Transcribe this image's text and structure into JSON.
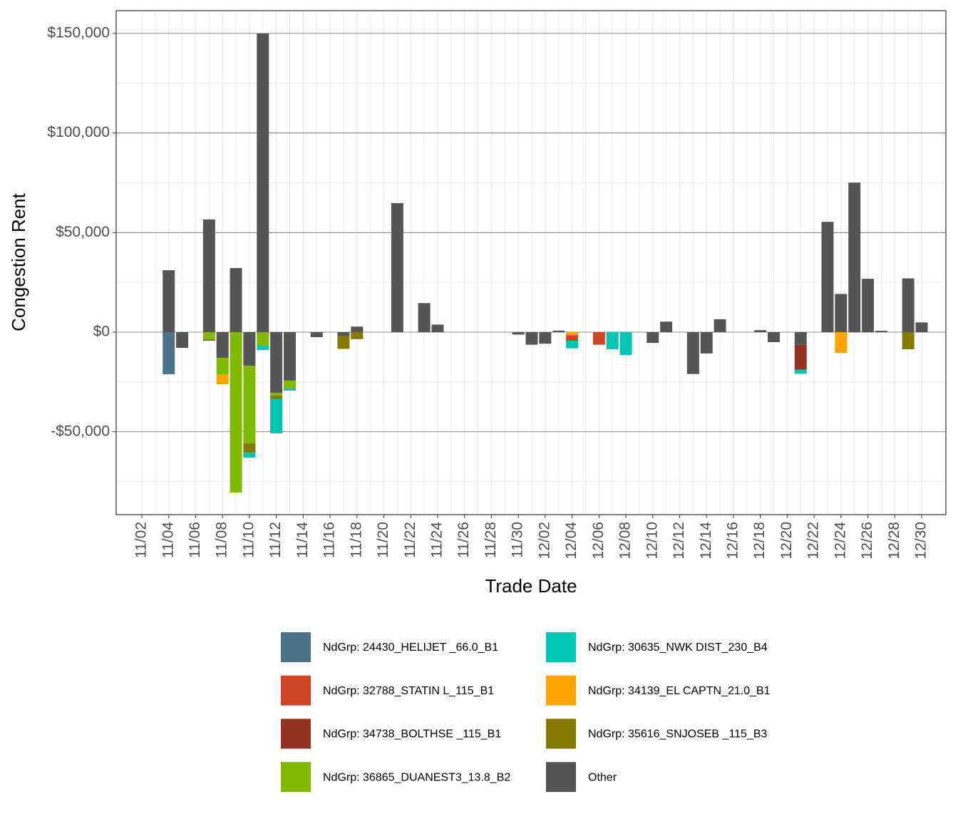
{
  "chart_data": {
    "type": "bar",
    "stacked": true,
    "x_label": "Trade Date",
    "y_label": "Congestion Rent",
    "categories": [
      "11/02",
      null,
      "11/04",
      null,
      "11/06",
      null,
      "11/08",
      null,
      "11/10",
      null,
      "11/12",
      null,
      "11/14",
      null,
      "11/16",
      null,
      "11/18",
      null,
      "11/20",
      null,
      "11/22",
      null,
      "11/24",
      null,
      "11/26",
      null,
      "11/28",
      null,
      "11/30",
      null,
      "12/02",
      null,
      "12/04",
      null,
      "12/06",
      null,
      "12/08",
      null,
      "12/10",
      null,
      "12/12",
      null,
      "12/14",
      null,
      "12/16",
      null,
      "12/18",
      null,
      "12/20",
      null,
      "12/22",
      null,
      "12/24",
      null,
      "12/26",
      null,
      "12/28",
      null,
      "12/30"
    ],
    "ylim": [
      -91600,
      161400
    ],
    "yticks": [
      {
        "value": -50000,
        "label": "-$50,000"
      },
      {
        "value": 0,
        "label": "$0"
      },
      {
        "value": 50000,
        "label": "$50,000"
      },
      {
        "value": 100000,
        "label": "$100,000"
      },
      {
        "value": 150000,
        "label": "$150,000"
      }
    ],
    "grid": true,
    "series": [
      {
        "name": "NdGrp: 24430_HELIJET _66.0_B1",
        "color": "#4e7389",
        "values": [
          0,
          0,
          -21100,
          0,
          0,
          0,
          0,
          0,
          0,
          0,
          0,
          0,
          0,
          0,
          0,
          0,
          0,
          0,
          0,
          0,
          0,
          0,
          0,
          0,
          0,
          0,
          0,
          0,
          0,
          0,
          0,
          0,
          0,
          0,
          0,
          0,
          0,
          0,
          0,
          0,
          0,
          0,
          0,
          0,
          0,
          0,
          0,
          0,
          0,
          0,
          0,
          0,
          0,
          0,
          0,
          0,
          0,
          0,
          0
        ]
      },
      {
        "name": "NdGrp: 32788_STATIN L_115_B1",
        "color": "#d04524",
        "values": [
          0,
          0,
          0,
          0,
          0,
          0,
          0,
          0,
          0,
          0,
          0,
          0,
          0,
          0,
          0,
          0,
          0,
          0,
          0,
          0,
          0,
          0,
          0,
          0,
          0,
          0,
          0,
          0,
          0,
          0,
          0,
          0,
          -2800,
          0,
          -6300,
          0,
          0,
          0,
          0,
          0,
          0,
          0,
          0,
          0,
          0,
          0,
          0,
          0,
          0,
          0,
          0,
          0,
          0,
          0,
          0,
          0,
          0,
          0,
          0
        ]
      },
      {
        "name": "NdGrp: 34738_BOLTHSE _115_B1",
        "color": "#933423",
        "values": [
          0,
          0,
          0,
          0,
          0,
          0,
          0,
          0,
          0,
          0,
          0,
          0,
          0,
          0,
          0,
          0,
          0,
          0,
          0,
          0,
          0,
          0,
          0,
          0,
          0,
          0,
          0,
          0,
          0,
          0,
          0,
          0,
          0,
          0,
          0,
          0,
          0,
          0,
          0,
          0,
          0,
          0,
          0,
          0,
          0,
          0,
          0,
          0,
          0,
          -12500,
          0,
          0,
          0,
          0,
          0,
          0,
          0,
          0,
          0
        ]
      },
      {
        "name": "NdGrp: 36865_DUANEST3_13.8_B2",
        "color": "#80ba00",
        "values": [
          0,
          0,
          0,
          0,
          0,
          -3500,
          -8200,
          -80500,
          -39000,
          -6800,
          -1400,
          -3900,
          0,
          0,
          0,
          0,
          0,
          0,
          0,
          0,
          0,
          0,
          0,
          0,
          0,
          0,
          0,
          0,
          0,
          0,
          0,
          0,
          0,
          0,
          0,
          0,
          0,
          0,
          0,
          0,
          0,
          0,
          0,
          0,
          0,
          0,
          0,
          0,
          0,
          0,
          0,
          0,
          0,
          0,
          0,
          0,
          0,
          0,
          0
        ]
      },
      {
        "name": "NdGrp: 30635_NWK DIST_230_B4",
        "color": "#00c5b1",
        "values": [
          0,
          0,
          0,
          0,
          0,
          0,
          0,
          0,
          -2500,
          -2100,
          -17200,
          -1100,
          0,
          0,
          0,
          0,
          0,
          0,
          0,
          0,
          0,
          0,
          0,
          0,
          0,
          0,
          0,
          0,
          0,
          0,
          0,
          0,
          -3800,
          0,
          0,
          -8600,
          -11500,
          0,
          0,
          0,
          0,
          0,
          0,
          0,
          0,
          0,
          0,
          0,
          0,
          -2100,
          0,
          0,
          0,
          0,
          0,
          0,
          0,
          0,
          0
        ]
      },
      {
        "name": "NdGrp: 34139_EL CAPTN_21.0_B1",
        "color": "#ffa300",
        "values": [
          0,
          0,
          0,
          0,
          0,
          0,
          -5000,
          0,
          0,
          0,
          0,
          0,
          0,
          0,
          0,
          0,
          0,
          0,
          0,
          0,
          0,
          0,
          0,
          0,
          0,
          0,
          0,
          0,
          0,
          0,
          0,
          0,
          -1500,
          0,
          0,
          0,
          0,
          0,
          0,
          0,
          0,
          0,
          0,
          0,
          0,
          0,
          0,
          0,
          0,
          0,
          0,
          0,
          -10400,
          0,
          0,
          0,
          0,
          0,
          0
        ]
      },
      {
        "name": "NdGrp: 35616_SNJOSEB _115_B3",
        "color": "#857a00",
        "values": [
          0,
          0,
          0,
          0,
          0,
          -800,
          0,
          0,
          -4700,
          0,
          -1800,
          0,
          0,
          0,
          0,
          -6400,
          -3500,
          0,
          0,
          0,
          0,
          0,
          0,
          0,
          0,
          0,
          0,
          0,
          0,
          0,
          0,
          0,
          0,
          0,
          0,
          0,
          0,
          0,
          0,
          0,
          0,
          0,
          0,
          0,
          0,
          0,
          0,
          0,
          0,
          0,
          0,
          0,
          0,
          0,
          0,
          0,
          0,
          -8600,
          0
        ]
      },
      {
        "name": "Other",
        "color": "#555555",
        "values": [
          0,
          0,
          31100,
          -7900,
          0,
          56600,
          -12900,
          32200,
          -16800,
          150000,
          -30400,
          -24300,
          0,
          -2500,
          0,
          -2000,
          2800,
          0,
          0,
          64800,
          0,
          14600,
          3800,
          0,
          0,
          0,
          0,
          0,
          -1200,
          -6300,
          -5800,
          800,
          0,
          0,
          0,
          0,
          0,
          0,
          -5400,
          5300,
          0,
          -21000,
          -10700,
          6500,
          0,
          0,
          1000,
          -5000,
          0,
          -6300,
          0,
          55400,
          19200,
          75100,
          26800,
          700,
          0,
          27000,
          4900
        ]
      }
    ]
  }
}
